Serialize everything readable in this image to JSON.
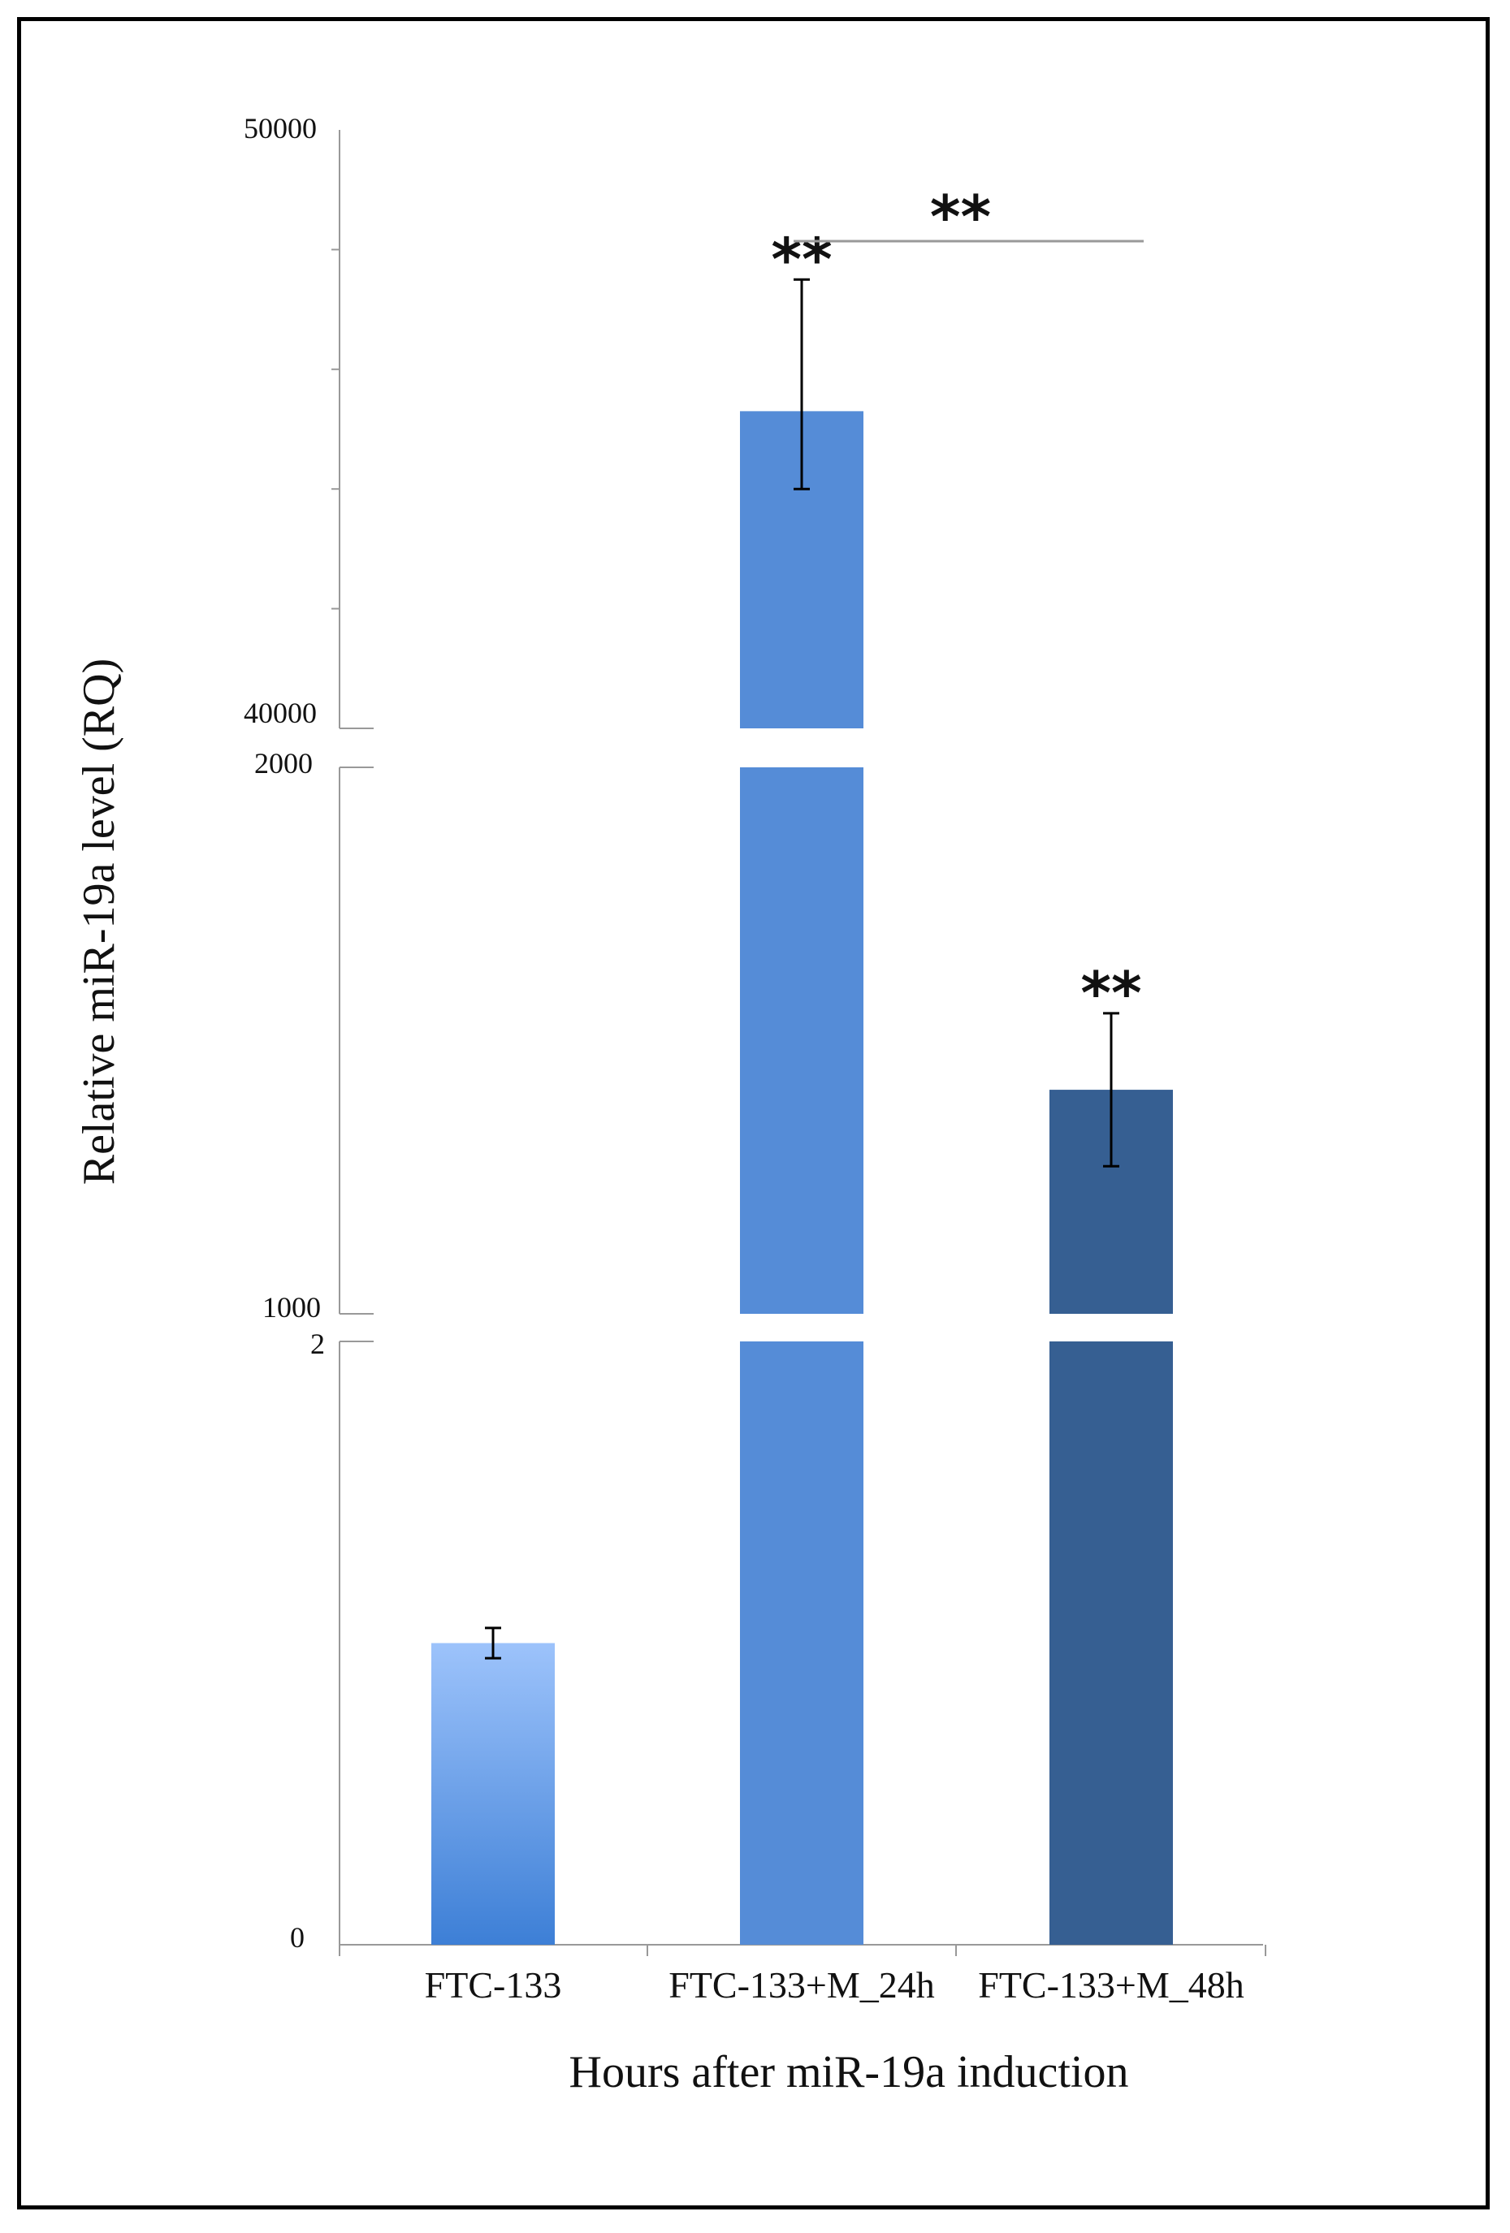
{
  "chart_data": {
    "type": "bar",
    "xlabel": "Hours after miR-19a induction",
    "ylabel": "Relative miR-19a level (RQ)",
    "categories": [
      "FTC-133",
      "FTC-133+M_24h",
      "FTC-133+M_48h"
    ],
    "values": [
      1.0,
      45300,
      1410
    ],
    "errors": [
      {
        "low": 0.95,
        "high": 1.05
      },
      {
        "low": 44000,
        "high": 47500
      },
      {
        "low": 1270,
        "high": 1550
      }
    ],
    "bar_colors": [
      {
        "top": "#9dc3fb",
        "bottom": "#3d7fd6"
      },
      {
        "top": "#558cd7",
        "bottom": "#558cd7"
      },
      {
        "top": "#365f92",
        "bottom": "#365f92"
      }
    ],
    "broken_axis": {
      "segments": [
        {
          "range": [
            0,
            2
          ],
          "ticks": [
            "0",
            "2"
          ]
        },
        {
          "range": [
            1000,
            2000
          ],
          "ticks": [
            "1000",
            "2000"
          ]
        },
        {
          "range": [
            40000,
            50000
          ],
          "ticks": [
            "40000",
            "50000"
          ]
        }
      ]
    },
    "significance": [
      {
        "category": "FTC-133+M_24h",
        "label": "**"
      },
      {
        "category": "FTC-133+M_48h",
        "label": "**"
      },
      {
        "from": "FTC-133+M_24h",
        "to": "FTC-133+M_48h",
        "label": "**"
      }
    ],
    "grid": false,
    "legend": "none"
  }
}
